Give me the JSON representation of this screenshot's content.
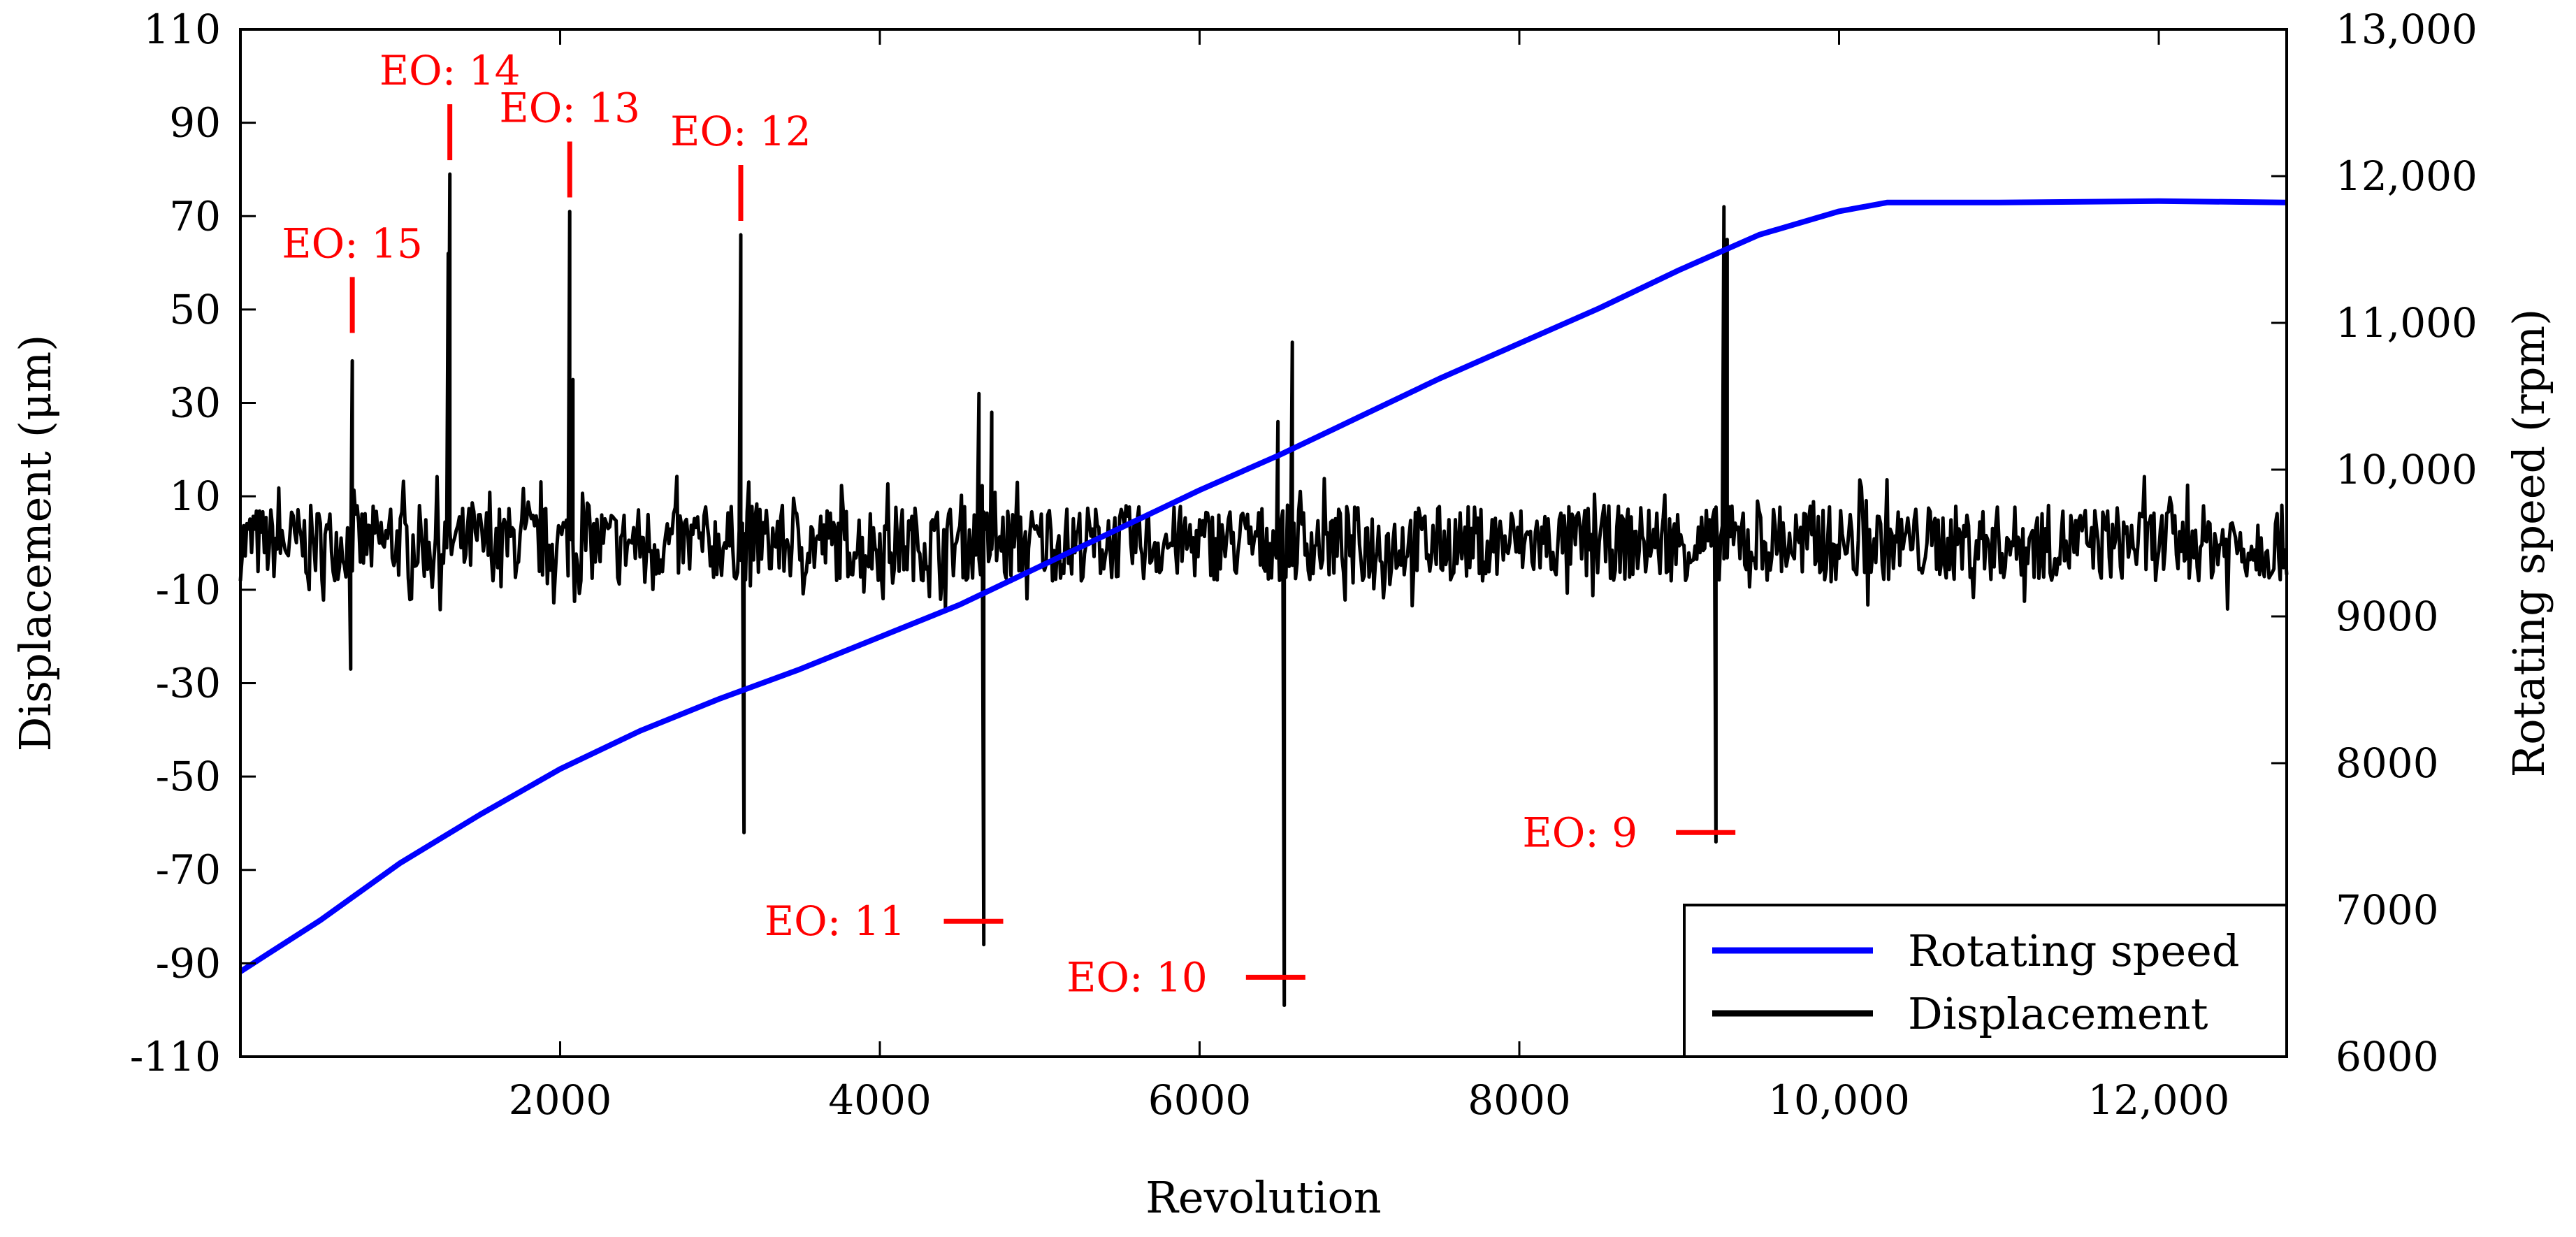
{
  "chart_data": {
    "type": "line",
    "xlabel": "Revolution",
    "ylabel_left": "Displacement (μm)",
    "ylabel_right": "Rotating speed (rpm)",
    "xlim": [
      0,
      12800
    ],
    "ylim_left": [
      -110,
      110
    ],
    "ylim_right": [
      6000,
      13000
    ],
    "x_ticks": [
      {
        "value": 2000,
        "label": "2000"
      },
      {
        "value": 4000,
        "label": "4000"
      },
      {
        "value": 6000,
        "label": "6000"
      },
      {
        "value": 8000,
        "label": "8000"
      },
      {
        "value": 10000,
        "label": "10,000"
      },
      {
        "value": 12000,
        "label": "12,000"
      }
    ],
    "y_left_ticks": [
      {
        "value": 110,
        "label": "110"
      },
      {
        "value": 90,
        "label": "90"
      },
      {
        "value": 70,
        "label": "70"
      },
      {
        "value": 50,
        "label": "50"
      },
      {
        "value": 30,
        "label": "30"
      },
      {
        "value": 10,
        "label": "10"
      },
      {
        "value": -10,
        "label": "-10"
      },
      {
        "value": -30,
        "label": "-30"
      },
      {
        "value": -50,
        "label": "-50"
      },
      {
        "value": -70,
        "label": "-70"
      },
      {
        "value": -90,
        "label": "-90"
      },
      {
        "value": -110,
        "label": "-110"
      }
    ],
    "y_right_ticks": [
      {
        "value": 13000,
        "label": "13,000"
      },
      {
        "value": 12000,
        "label": "12,000"
      },
      {
        "value": 11000,
        "label": "11,000"
      },
      {
        "value": 10000,
        "label": "10,000"
      },
      {
        "value": 9000,
        "label": "9000"
      },
      {
        "value": 8000,
        "label": "8000"
      },
      {
        "value": 7000,
        "label": "7000"
      },
      {
        "value": 6000,
        "label": "6000"
      }
    ],
    "series": [
      {
        "name": "Rotating speed",
        "color": "#0000ff",
        "axis": "right",
        "x": [
          0,
          500,
          1000,
          1500,
          2000,
          2500,
          3000,
          3500,
          4000,
          4500,
          5000,
          5500,
          6000,
          6500,
          7000,
          7500,
          8000,
          8500,
          9000,
          9500,
          10000,
          10300,
          11000,
          12000,
          12800
        ],
        "y": [
          6580,
          6930,
          7320,
          7650,
          7960,
          8220,
          8440,
          8640,
          8860,
          9080,
          9340,
          9600,
          9860,
          10100,
          10360,
          10620,
          10860,
          11100,
          11360,
          11600,
          11760,
          11820,
          11820,
          11830,
          11820
        ]
      },
      {
        "name": "Displacement",
        "color": "#000000",
        "axis": "left",
        "noise_amplitude": 9,
        "baseline": 0,
        "peaks": [
          {
            "x": 700,
            "y": 39
          },
          {
            "x": 690,
            "y": -27
          },
          {
            "x": 1310,
            "y": 79
          },
          {
            "x": 1300,
            "y": 62
          },
          {
            "x": 2060,
            "y": 71
          },
          {
            "x": 2080,
            "y": 35
          },
          {
            "x": 3130,
            "y": 66
          },
          {
            "x": 3150,
            "y": -62
          },
          {
            "x": 4620,
            "y": 32
          },
          {
            "x": 4650,
            "y": -86
          },
          {
            "x": 4700,
            "y": 28
          },
          {
            "x": 6490,
            "y": 26
          },
          {
            "x": 6530,
            "y": -99
          },
          {
            "x": 6580,
            "y": 43
          },
          {
            "x": 9230,
            "y": -64
          },
          {
            "x": 9280,
            "y": 72
          },
          {
            "x": 9300,
            "y": 65
          }
        ]
      }
    ],
    "annotations": [
      {
        "label": "EO: 15",
        "x": 700,
        "y": 45,
        "orientation": "vertical"
      },
      {
        "label": "EO: 14",
        "x": 1310,
        "y": 82,
        "orientation": "vertical"
      },
      {
        "label": "EO: 13",
        "x": 2060,
        "y": 74,
        "orientation": "vertical"
      },
      {
        "label": "EO: 12",
        "x": 3130,
        "y": 69,
        "orientation": "vertical"
      },
      {
        "label": "EO: 11",
        "x": 4400,
        "y": -81,
        "orientation": "horizontal"
      },
      {
        "label": "EO: 10",
        "x": 6290,
        "y": -93,
        "orientation": "horizontal"
      },
      {
        "label": "EO: 9",
        "x": 8980,
        "y": -62,
        "orientation": "horizontal"
      }
    ],
    "legend": {
      "placement": "bottom-right",
      "entries": [
        {
          "label": "Rotating speed",
          "color": "#0000ff"
        },
        {
          "label": "Displacement",
          "color": "#000000"
        }
      ]
    }
  }
}
